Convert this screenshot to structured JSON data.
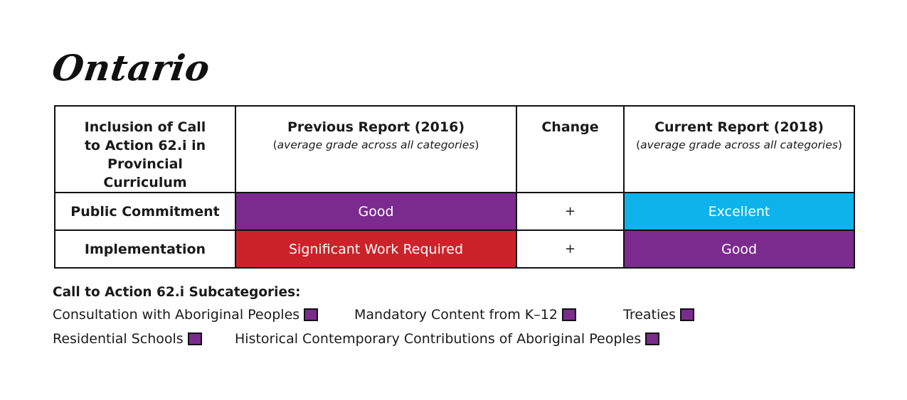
{
  "title": "Ontario",
  "table": {
    "headers": {
      "inclusion": "Inclusion of Call to Action 62.i in Provincial Curriculum",
      "previous": "Previous Report (2016)",
      "previous_sub": "average grade across all categories",
      "change": "Change",
      "current": "Current Report (2018)",
      "current_sub": "average grade across all categories"
    },
    "rows": [
      {
        "label": "Public Commitment",
        "previous": "Good",
        "previous_color": "#7b2a8e",
        "change": "+",
        "current": "Excellent",
        "current_color": "#0db3ea"
      },
      {
        "label": "Implementation",
        "previous": "Significant Work Required",
        "previous_color": "#cc2229",
        "change": "+",
        "current": "Good",
        "current_color": "#7b2a8e"
      }
    ]
  },
  "subcategories": {
    "heading": "Call to Action 62.i Subcategories:",
    "items": [
      {
        "label": "Consultation with Aboriginal Peoples",
        "color": "#7b2a8e"
      },
      {
        "label": "Mandatory Content from K–12",
        "color": "#7b2a8e"
      },
      {
        "label": "Treaties",
        "color": "#7b2a8e"
      },
      {
        "label": "Residential Schools",
        "color": "#7b2a8e"
      },
      {
        "label": "Historical Contemporary Contributions of Aboriginal Peoples",
        "color": "#7b2a8e"
      }
    ]
  }
}
